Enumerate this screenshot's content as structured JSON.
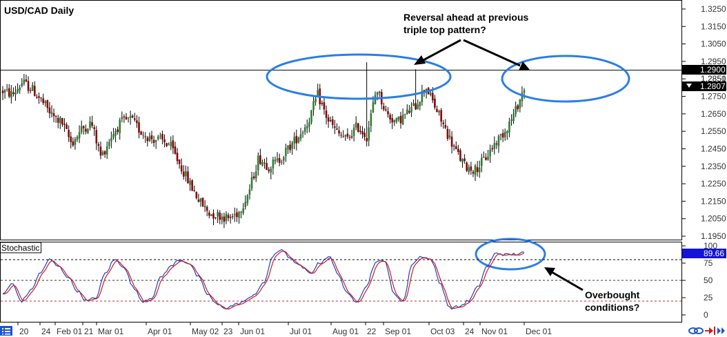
{
  "chart_data": [
    {
      "type": "candlestick",
      "title": "USD/CAD Daily",
      "ylim": [
        1.19,
        1.33
      ],
      "y_ticks": [
        "1.3250",
        "1.3150",
        "1.3050",
        "1.2950",
        "1.2850",
        "1.2750",
        "1.2650",
        "1.2550",
        "1.2450",
        "1.2350",
        "1.2250",
        "1.2150",
        "1.2050",
        "1.1950"
      ],
      "horizontal_line": {
        "value": 1.29,
        "label": "1.2900"
      },
      "current_price": {
        "value": 1.2807,
        "label": "1.2807"
      },
      "hidden_tick": "1.2851",
      "colors": {
        "up": "#2e7d32",
        "down": "#8b0000",
        "badge": "#000000",
        "circle": "#2b7de9"
      },
      "anchors": [
        1.278,
        1.276,
        1.283,
        1.279,
        1.272,
        1.264,
        1.26,
        1.248,
        1.256,
        1.26,
        1.24,
        1.252,
        1.26,
        1.262,
        1.255,
        1.251,
        1.25,
        1.247,
        1.236,
        1.225,
        1.215,
        1.208,
        1.207,
        1.205,
        1.209,
        1.22,
        1.24,
        1.235,
        1.238,
        1.245,
        1.252,
        1.26,
        1.276,
        1.262,
        1.254,
        1.25,
        1.258,
        1.252,
        1.28,
        1.265,
        1.26,
        1.265,
        1.27,
        1.281,
        1.268,
        1.256,
        1.244,
        1.235,
        1.233,
        1.239,
        1.248,
        1.255,
        1.265,
        1.28
      ],
      "annotations": [
        {
          "line1": "Reversal ahead at previous",
          "line2": "triple top pattern?"
        },
        {
          "line1": "Overbought",
          "line2": "conditions?"
        }
      ]
    },
    {
      "type": "line",
      "title": "Stochastic",
      "ylim": [
        0,
        100
      ],
      "y_ticks": [
        "100",
        "75",
        "50",
        "25",
        "0"
      ],
      "levels": [
        80,
        50,
        20
      ],
      "current_value": {
        "value": 89.66,
        "label": "89.66"
      },
      "series": [
        {
          "color": "#1f3fbf"
        },
        {
          "color": "#d11a1a"
        }
      ],
      "anchors": [
        30,
        45,
        20,
        35,
        60,
        80,
        70,
        55,
        35,
        20,
        25,
        60,
        80,
        70,
        40,
        20,
        25,
        55,
        70,
        80,
        75,
        55,
        30,
        15,
        10,
        15,
        20,
        30,
        45,
        85,
        95,
        80,
        70,
        60,
        75,
        85,
        60,
        30,
        20,
        40,
        75,
        80,
        30,
        20,
        75,
        85,
        80,
        45,
        10,
        12,
        20,
        40,
        70,
        90,
        87,
        88,
        89.66
      ]
    }
  ],
  "x_axis": {
    "ticks": [
      "20",
      "24",
      "Feb 01",
      "21",
      "Mar 01",
      "Apr 01",
      "May 02",
      "23",
      "Jun 01",
      "Jul 01",
      "Aug 01",
      "22",
      "Sep 01",
      "Oct 03",
      "24",
      "Nov 01",
      "Dec 01"
    ]
  },
  "icons": {
    "menu": "list-menu-icon",
    "link": "chain-link-icon",
    "scroll_end": "scroll-to-end-icon",
    "scroll_fast": "fast-forward-icon"
  }
}
